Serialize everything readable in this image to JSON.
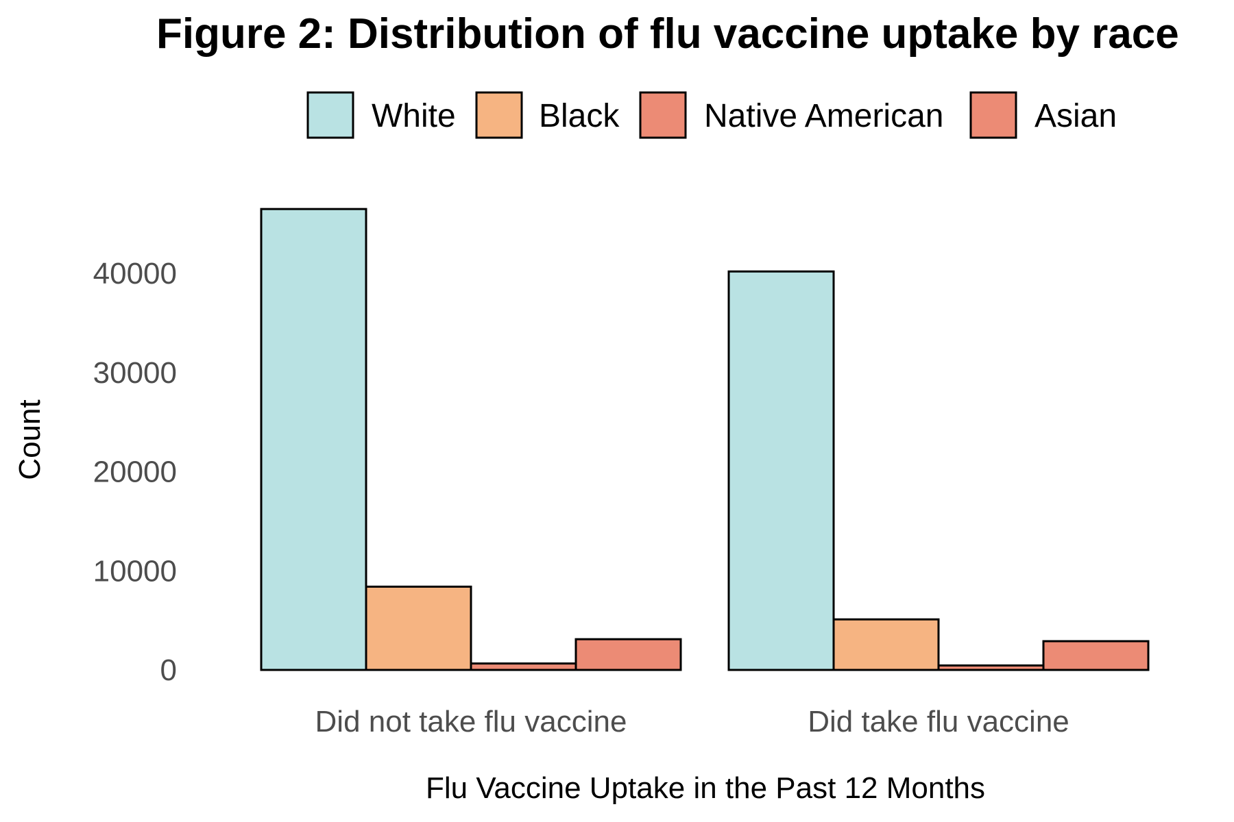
{
  "chart_data": {
    "type": "bar",
    "title": "Figure 2: Distribution of flu vaccine uptake by race",
    "xlabel": "Flu Vaccine Uptake in the Past 12 Months",
    "ylabel": "Count",
    "categories": [
      "Did not take flu vaccine",
      "Did take flu vaccine"
    ],
    "series": [
      {
        "name": "White",
        "color": "#b9e2e3",
        "values": [
          46500,
          40200
        ]
      },
      {
        "name": "Black",
        "color": "#f6b482",
        "values": [
          8400,
          5100
        ]
      },
      {
        "name": "Native American",
        "color": "#ec8b75",
        "values": [
          650,
          450
        ]
      },
      {
        "name": "Asian",
        "color": "#ec8b75",
        "values": [
          3100,
          2900
        ]
      }
    ],
    "y_ticks": [
      "0",
      "10000",
      "20000",
      "30000",
      "40000"
    ],
    "y_tick_values": [
      0,
      10000,
      20000,
      30000,
      40000
    ],
    "ylim": [
      0,
      50000
    ],
    "legend_position": "top",
    "grid": false
  }
}
